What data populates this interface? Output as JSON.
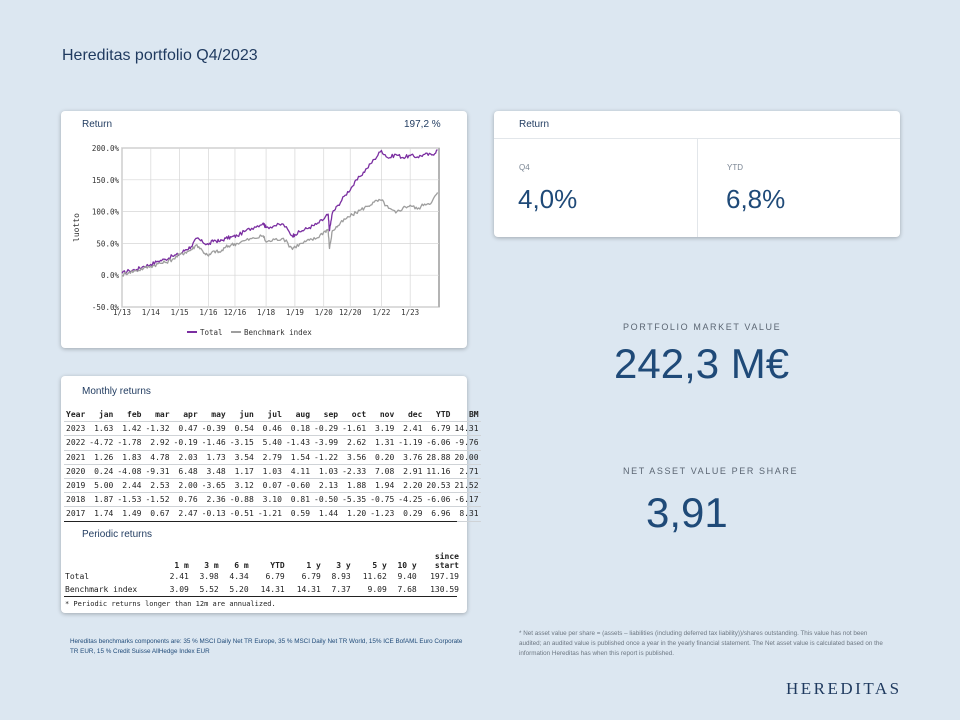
{
  "title": "Hereditas portfolio Q4/2023",
  "chart_card": {
    "label": "Return",
    "value": "197,2 %"
  },
  "chart_data": {
    "type": "line",
    "ylabel": "luotto",
    "y_ticks": [
      "200.0%",
      "150.0%",
      "100.0%",
      "50.0%",
      "0.0%",
      "-50.0%"
    ],
    "y_tick_values": [
      200,
      150,
      100,
      50,
      0,
      -50
    ],
    "ylim": [
      -50,
      200
    ],
    "x_ticks": [
      "1/13",
      "1/14",
      "1/15",
      "1/16",
      "12/16",
      "1/18",
      "1/19",
      "1/20",
      "12/20",
      "1/22",
      "1/23"
    ],
    "x_tick_values": [
      2013.0,
      2014.0,
      2015.0,
      2016.0,
      2016.92,
      2018.0,
      2019.0,
      2020.0,
      2020.92,
      2022.0,
      2023.0
    ],
    "xlim": [
      2013.0,
      2024.0
    ],
    "series": [
      {
        "name": "Total",
        "color": "#7b2fa1",
        "x": [
          2013.0,
          2013.25,
          2013.5,
          2013.75,
          2014.0,
          2014.25,
          2014.5,
          2014.75,
          2015.0,
          2015.2,
          2015.4,
          2015.6,
          2015.8,
          2016.0,
          2016.2,
          2016.4,
          2016.6,
          2016.8,
          2017.0,
          2017.3,
          2017.6,
          2017.9,
          2018.0,
          2018.3,
          2018.6,
          2018.9,
          2019.0,
          2019.25,
          2019.5,
          2019.75,
          2020.0,
          2020.15,
          2020.2,
          2020.3,
          2020.5,
          2020.75,
          2021.0,
          2021.25,
          2021.5,
          2021.75,
          2022.0,
          2022.25,
          2022.5,
          2022.75,
          2023.0,
          2023.25,
          2023.5,
          2023.75,
          2023.95
        ],
        "values": [
          3,
          7,
          9,
          14,
          17,
          22,
          25,
          30,
          33,
          40,
          45,
          58,
          52,
          48,
          55,
          53,
          58,
          60,
          62,
          70,
          76,
          82,
          75,
          78,
          80,
          62,
          64,
          70,
          75,
          80,
          88,
          96,
          70,
          98,
          110,
          126,
          140,
          155,
          168,
          182,
          196,
          184,
          190,
          185,
          188,
          186,
          190,
          189,
          197
        ]
      },
      {
        "name": "Benchmark index",
        "color": "#9e9e9e",
        "x": [
          2013.0,
          2013.25,
          2013.5,
          2013.75,
          2014.0,
          2014.25,
          2014.5,
          2014.75,
          2015.0,
          2015.2,
          2015.4,
          2015.6,
          2015.8,
          2016.0,
          2016.2,
          2016.4,
          2016.6,
          2016.8,
          2017.0,
          2017.3,
          2017.6,
          2017.9,
          2018.0,
          2018.3,
          2018.6,
          2018.9,
          2019.0,
          2019.25,
          2019.5,
          2019.75,
          2020.0,
          2020.15,
          2020.2,
          2020.3,
          2020.5,
          2020.75,
          2021.0,
          2021.25,
          2021.5,
          2021.75,
          2022.0,
          2022.25,
          2022.5,
          2022.75,
          2023.0,
          2023.25,
          2023.5,
          2023.75,
          2023.95
        ],
        "values": [
          0,
          5,
          7,
          11,
          14,
          18,
          20,
          25,
          32,
          36,
          40,
          48,
          38,
          30,
          38,
          36,
          44,
          48,
          50,
          55,
          58,
          62,
          52,
          56,
          58,
          42,
          45,
          50,
          55,
          58,
          68,
          72,
          42,
          70,
          78,
          88,
          95,
          102,
          108,
          115,
          118,
          105,
          98,
          106,
          110,
          104,
          112,
          115,
          130
        ]
      }
    ]
  },
  "return_card": {
    "label": "Return",
    "q4_label": "Q4",
    "q4_value": "4,0%",
    "ytd_label": "YTD",
    "ytd_value": "6,8%"
  },
  "kpi": {
    "market_value_label": "PORTFOLIO MARKET VALUE",
    "market_value": "242,3 M€",
    "nav_label": "NET ASSET VALUE PER SHARE",
    "nav_value": "3,91"
  },
  "monthly": {
    "label": "Monthly returns",
    "headers": [
      "Year",
      "jan",
      "feb",
      "mar",
      "apr",
      "may",
      "jun",
      "jul",
      "aug",
      "sep",
      "oct",
      "nov",
      "dec",
      "YTD",
      "BM"
    ],
    "rows": [
      [
        "2023",
        "1.63",
        "1.42",
        "-1.32",
        "0.47",
        "-0.39",
        "0.54",
        "0.46",
        "0.18",
        "-0.29",
        "-1.61",
        "3.19",
        "2.41",
        "6.79",
        "14.31"
      ],
      [
        "2022",
        "-4.72",
        "-1.78",
        "2.92",
        "-0.19",
        "-1.46",
        "-3.15",
        "5.40",
        "-1.43",
        "-3.99",
        "2.62",
        "1.31",
        "-1.19",
        "-6.06",
        "-9.76"
      ],
      [
        "2021",
        "1.26",
        "1.83",
        "4.78",
        "2.03",
        "1.73",
        "3.54",
        "2.79",
        "1.54",
        "-1.22",
        "3.56",
        "0.20",
        "3.76",
        "28.88",
        "20.00"
      ],
      [
        "2020",
        "0.24",
        "-4.08",
        "-9.31",
        "6.48",
        "3.48",
        "1.17",
        "1.03",
        "4.11",
        "1.03",
        "-2.33",
        "7.08",
        "2.91",
        "11.16",
        "2.71"
      ],
      [
        "2019",
        "5.00",
        "2.44",
        "2.53",
        "2.00",
        "-3.65",
        "3.12",
        "0.07",
        "-0.60",
        "2.13",
        "1.88",
        "1.94",
        "2.20",
        "20.53",
        "21.52"
      ],
      [
        "2018",
        "1.87",
        "-1.53",
        "-1.52",
        "0.76",
        "2.36",
        "-0.88",
        "3.10",
        "0.81",
        "-0.50",
        "-5.35",
        "-0.75",
        "-4.25",
        "-6.06",
        "-6.17"
      ],
      [
        "2017",
        "1.74",
        "1.49",
        "0.67",
        "2.47",
        "-0.13",
        "-0.51",
        "-1.21",
        "0.59",
        "1.44",
        "1.20",
        "-1.23",
        "0.29",
        "6.96",
        "8.31"
      ]
    ]
  },
  "periodic": {
    "label": "Periodic returns",
    "headers": [
      "",
      "1 m",
      "3 m",
      "6 m",
      "YTD",
      "1 y",
      "3 y",
      "5 y",
      "10 y",
      "since start"
    ],
    "rows": [
      [
        "Total",
        "2.41",
        "3.98",
        "4.34",
        "6.79",
        "6.79",
        "8.93",
        "11.62",
        "9.40",
        "197.19"
      ],
      [
        "Benchmark index",
        "3.09",
        "5.52",
        "5.20",
        "14.31",
        "14.31",
        "7.37",
        "9.09",
        "7.68",
        "130.59"
      ]
    ],
    "note": "* Periodic returns longer than 12m are annualized."
  },
  "footer": {
    "benchmark_note": "Hereditas benchmarks components are: 35 % MSCI Daily Net TR Europe, 35 % MSCI Daily Net TR World, 15% ICE BofAML Euro Corporate TR EUR, 15 % Credit Suisse AllHedge Index EUR",
    "nav_note": "* Net asset value per share = (assets – liabilities (including deferred tax liability))/shares outstanding. This value has not been audited; an audited value is published once a year in the yearly financial statement. The Net asset value is calculated based on the information Hereditas has when this report is published.",
    "logo": "HEREDITAS"
  }
}
